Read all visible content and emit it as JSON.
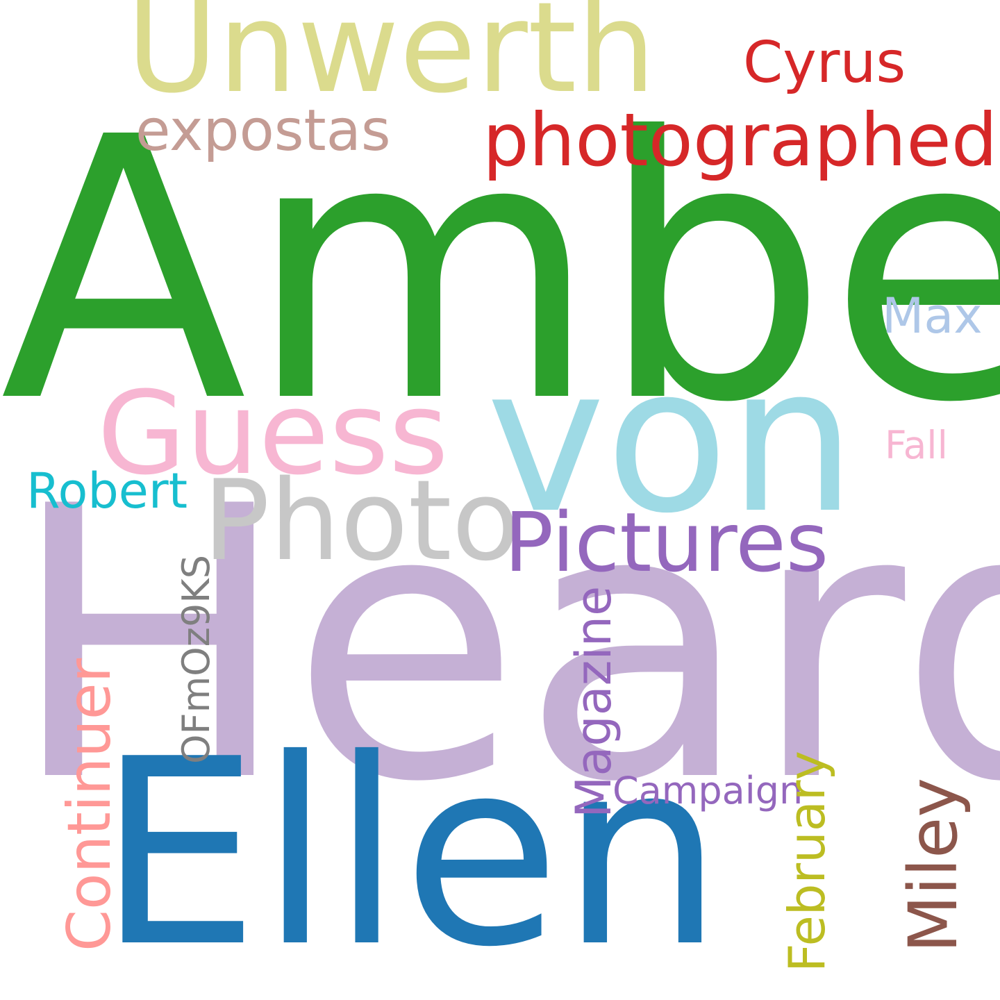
{
  "words": {
    "amber": {
      "text": "Amber",
      "color": "#2ca02c"
    },
    "heard": {
      "text": "Heard",
      "color": "#c5b0d5"
    },
    "ellen": {
      "text": "Ellen",
      "color": "#1f77b4"
    },
    "von": {
      "text": "von",
      "color": "#9edae5"
    },
    "unwerth": {
      "text": "Unwerth",
      "color": "#dbdb8d"
    },
    "guess": {
      "text": "Guess",
      "color": "#f7b6d2"
    },
    "photo": {
      "text": "Photo",
      "color": "#c7c7c7"
    },
    "pictures": {
      "text": "Pictures",
      "color": "#9467bd"
    },
    "photographed": {
      "text": "photographed",
      "color": "#d62728"
    },
    "expostas": {
      "text": "expostas",
      "color": "#c49c94"
    },
    "cyrus": {
      "text": "Cyrus",
      "color": "#d62728"
    },
    "robert": {
      "text": "Robert",
      "color": "#17becf"
    },
    "max": {
      "text": "Max",
      "color": "#aec7e8"
    },
    "fall": {
      "text": "Fall",
      "color": "#f7b6d2"
    },
    "campaign": {
      "text": "Campaign",
      "color": "#9467bd"
    },
    "continuer": {
      "text": "Continuer",
      "color": "#ff9896"
    },
    "ofm": {
      "text": "OFmOz9KS",
      "color": "#7f7f7f"
    },
    "magazine": {
      "text": "Magazine",
      "color": "#9467bd"
    },
    "february": {
      "text": "February",
      "color": "#bcbd22"
    },
    "miley": {
      "text": "Miley",
      "color": "#8c564b"
    }
  }
}
